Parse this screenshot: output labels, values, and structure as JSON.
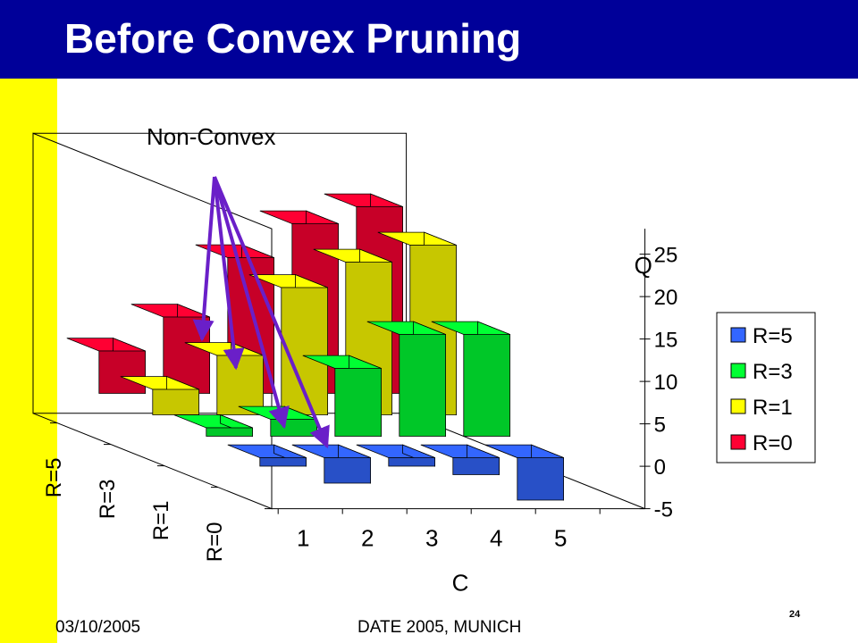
{
  "slide": {
    "title": "Before Convex Pruning",
    "annotation": "Non-Convex",
    "footer_date": "03/10/2005",
    "footer_venue": "DATE 2005, MUNICH",
    "page_number": "24"
  },
  "colors": {
    "title_bar": "#000099",
    "left_strip": "#ffff00",
    "arrow": "#6a1fc8",
    "R=5": "#3366ff",
    "R=3": "#00ff33",
    "R=1": "#ffff00",
    "R=0": "#ff0033"
  },
  "chart_data": {
    "type": "bar",
    "subtype": "3d-column",
    "categories": [
      "1",
      "2",
      "3",
      "4",
      "5"
    ],
    "depth_categories": [
      "R=0",
      "R=1",
      "R=3",
      "R=5"
    ],
    "series": [
      {
        "name": "R=0",
        "values": [
          5,
          9,
          16,
          20,
          22
        ]
      },
      {
        "name": "R=1",
        "values": [
          3,
          7,
          15,
          18,
          20
        ]
      },
      {
        "name": "R=3",
        "values": [
          1,
          2,
          8,
          12,
          12
        ]
      },
      {
        "name": "R=5",
        "values": [
          -1,
          -3,
          -1,
          -2,
          -5
        ]
      }
    ],
    "xlabel": "C",
    "ylabel": "Q",
    "yticks": [
      "-5",
      "0",
      "5",
      "10",
      "15",
      "20",
      "25"
    ],
    "ylim": [
      -5,
      25
    ],
    "legend": [
      "R=5",
      "R=3",
      "R=1",
      "R=0"
    ],
    "legend_position": "right",
    "grid": false
  }
}
